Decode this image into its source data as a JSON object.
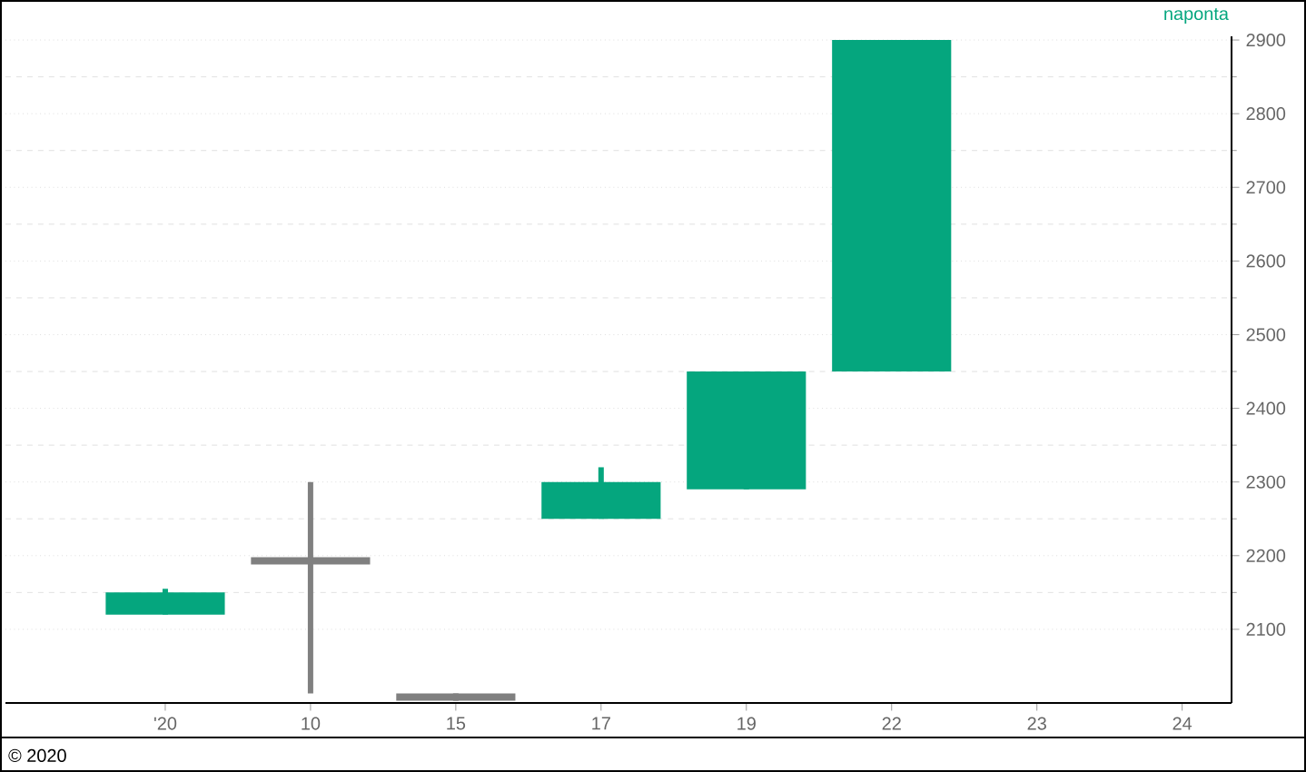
{
  "chart_data": {
    "type": "candlestick",
    "categories": [
      "'20",
      "10",
      "15",
      "17",
      "19",
      "22",
      "23",
      "24"
    ],
    "ohlc": [
      [
        2120,
        2155,
        2120,
        2150
      ],
      [
        2188,
        2300,
        2013,
        2198
      ],
      [
        2003,
        2013,
        2003,
        2013
      ],
      [
        2250,
        2320,
        2250,
        2300
      ],
      [
        2290,
        2450,
        2290,
        2450
      ],
      [
        2450,
        2900,
        2450,
        2900
      ],
      null,
      null
    ],
    "colors": [
      "#05a67e",
      "#808080",
      "#808080",
      "#05a67e",
      "#05a67e",
      "#05a67e",
      null,
      null
    ],
    "ylim": [
      2000,
      2905
    ],
    "yticks": [
      2100,
      2200,
      2300,
      2400,
      2500,
      2600,
      2700,
      2800,
      2900
    ],
    "grid": "y",
    "annotations": [
      "naponta",
      "© 2020"
    ]
  }
}
